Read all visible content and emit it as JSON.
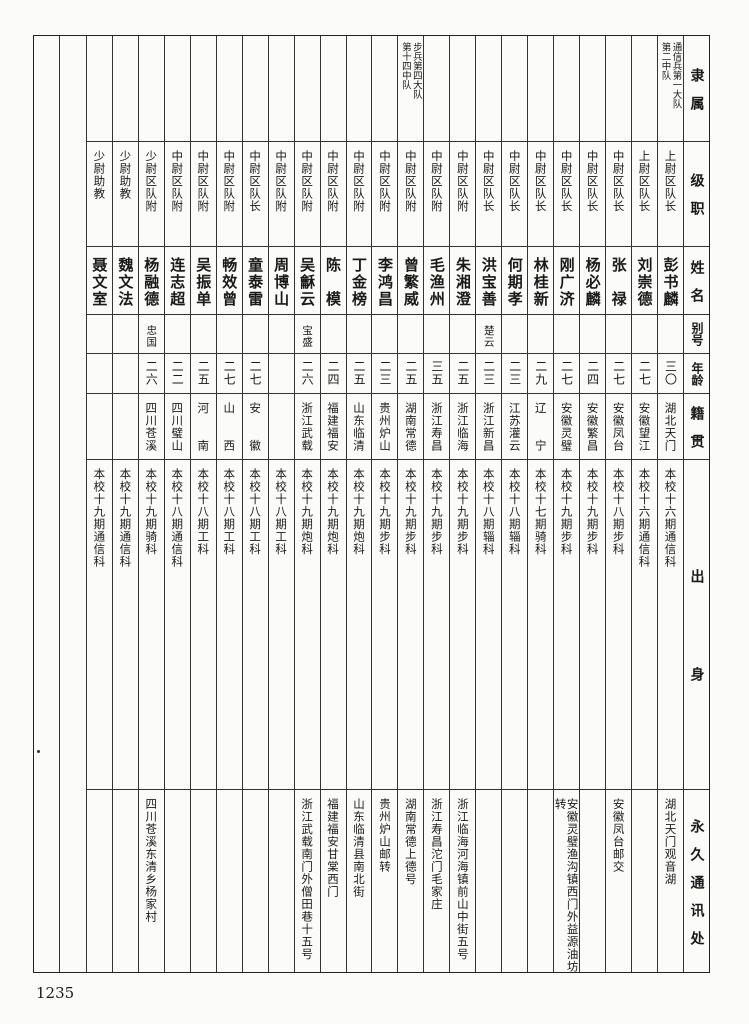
{
  "page_number": "1235",
  "headers": {
    "unit": "隶　属",
    "rank": "级　职",
    "name": "姓　名",
    "alias": "别号",
    "age": "年龄",
    "native": "籍　贯",
    "origin": "出　　　　　　身",
    "address": "永　久　通　讯　处"
  },
  "rows": [
    {
      "unit": "通信兵第一大队\n第二中队",
      "rank": "上尉区队长",
      "name": "彭书麟",
      "alias": "",
      "age": "三〇",
      "native": "湖北天门",
      "origin": "本校十六期通信科",
      "address": "湖北天门观音湖"
    },
    {
      "unit": "",
      "rank": "上尉区队长",
      "name": "刘崇德",
      "alias": "",
      "age": "二七",
      "native": "安徽望江",
      "origin": "本校十六期通信科",
      "address": ""
    },
    {
      "unit": "",
      "rank": "中尉区队长",
      "name": "张　禄",
      "alias": "",
      "age": "二七",
      "native": "安徽凤台",
      "origin": "本校十八期步科",
      "address": "安徽凤台邮交"
    },
    {
      "unit": "",
      "rank": "中尉区队长",
      "name": "杨必麟",
      "alias": "",
      "age": "二四",
      "native": "安徽繁昌",
      "origin": "本校十九期步科",
      "address": ""
    },
    {
      "unit": "",
      "rank": "中尉区队长",
      "name": "刚广济",
      "alias": "",
      "age": "二七",
      "native": "安徽灵璧",
      "origin": "本校十九期步科",
      "address": "安徽灵璧渔沟镇西门外益源油坊转"
    },
    {
      "unit": "",
      "rank": "中尉区队长",
      "name": "林桂新",
      "alias": "",
      "age": "二九",
      "native": "辽　　宁",
      "origin": "本校十七期骑科",
      "address": ""
    },
    {
      "unit": "",
      "rank": "中尉区队长",
      "name": "何期孝",
      "alias": "",
      "age": "二三",
      "native": "江苏灌云",
      "origin": "本校十八期辎科",
      "address": ""
    },
    {
      "unit": "",
      "rank": "中尉区队长",
      "name": "洪宝善",
      "alias": "楚云",
      "age": "二三",
      "native": "浙江新昌",
      "origin": "本校十八期辎科",
      "address": ""
    },
    {
      "unit": "",
      "rank": "中尉区队附",
      "name": "朱湘澄",
      "alias": "",
      "age": "二五",
      "native": "浙江临海",
      "origin": "本校十九期步科",
      "address": "浙江临海河海镇前山中街五号"
    },
    {
      "unit": "",
      "rank": "中尉区队附",
      "name": "毛渔州",
      "alias": "",
      "age": "三五",
      "native": "浙江寿昌",
      "origin": "本校十九期步科",
      "address": "浙江寿昌沱门毛家庄"
    },
    {
      "unit": "步兵第四大队\n第十四中队",
      "rank": "中尉区队附",
      "name": "曾繁威",
      "alias": "",
      "age": "二五",
      "native": "湖南常德",
      "origin": "本校十九期步科",
      "address": "湖南常德上德号"
    },
    {
      "unit": "",
      "rank": "中尉区队附",
      "name": "李鸿昌",
      "alias": "",
      "age": "二三",
      "native": "贵州炉山",
      "origin": "本校十九期步科",
      "address": "贵州炉山邮转"
    },
    {
      "unit": "",
      "rank": "中尉区队附",
      "name": "丁金榜",
      "alias": "",
      "age": "二五",
      "native": "山东临清",
      "origin": "本校十九期炮科",
      "address": "山东临清县南北街"
    },
    {
      "unit": "",
      "rank": "中尉区队附",
      "name": "陈　模",
      "alias": "",
      "age": "二四",
      "native": "福建福安",
      "origin": "本校十九期炮科",
      "address": "福建福安甘棠西门"
    },
    {
      "unit": "",
      "rank": "中尉区队附",
      "name": "吴龢云",
      "alias": "宝盛",
      "age": "二六",
      "native": "浙江武载",
      "origin": "本校十九期炮科",
      "address": "浙江武载南门外僧田巷十五号"
    },
    {
      "unit": "",
      "rank": "中尉区队附",
      "name": "周博山",
      "alias": "",
      "age": "",
      "native": "",
      "origin": "本校十八期工科",
      "address": ""
    },
    {
      "unit": "",
      "rank": "中尉区队长",
      "name": "童泰雷",
      "alias": "",
      "age": "二七",
      "native": "安　　徽",
      "origin": "本校十八期工科",
      "address": ""
    },
    {
      "unit": "",
      "rank": "中尉区队附",
      "name": "畅效曾",
      "alias": "",
      "age": "二七",
      "native": "山　　西",
      "origin": "本校十八期工科",
      "address": ""
    },
    {
      "unit": "",
      "rank": "中尉区队附",
      "name": "吴振单",
      "alias": "",
      "age": "二五",
      "native": "河　　南",
      "origin": "本校十八期工科",
      "address": ""
    },
    {
      "unit": "",
      "rank": "中尉区队附",
      "name": "连志超",
      "alias": "",
      "age": "二二",
      "native": "四川璧山",
      "origin": "本校十八期通信科",
      "address": ""
    },
    {
      "unit": "",
      "rank": "少尉区队附",
      "name": "杨融德",
      "alias": "忠国",
      "age": "二六",
      "native": "四川苍溪",
      "origin": "本校十九期骑科",
      "address": "四川苍溪东清乡杨家村"
    },
    {
      "unit": "",
      "rank": "少尉助教",
      "name": "魏文法",
      "alias": "",
      "age": "",
      "native": "",
      "origin": "本校十九期通信科",
      "address": ""
    },
    {
      "unit": "",
      "rank": "少尉助教",
      "name": "聂文室",
      "alias": "",
      "age": "",
      "native": "",
      "origin": "本校十九期通信科",
      "address": ""
    }
  ]
}
